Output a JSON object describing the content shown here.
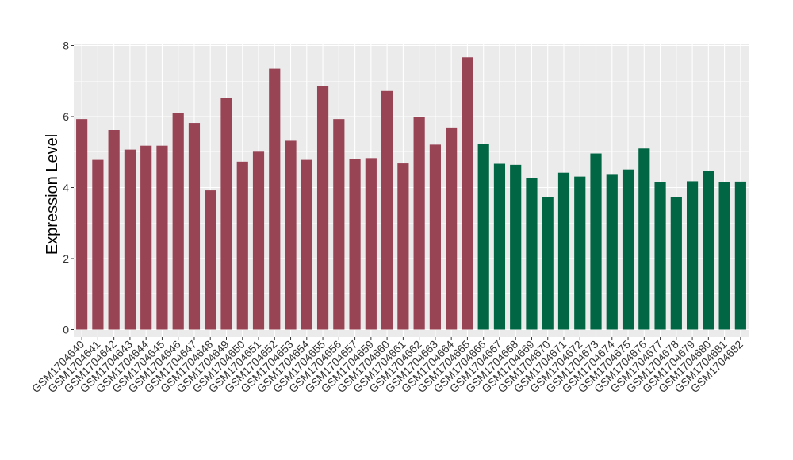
{
  "chart_data": {
    "type": "bar",
    "ylabel": "Expression Level",
    "xlabel": "",
    "title": "",
    "ylim": [
      0,
      8.1
    ],
    "yticks": [
      0,
      2,
      4,
      6,
      8
    ],
    "grid": true,
    "colors": {
      "group1": "#994455",
      "group2": "#006644",
      "panel": "#ebebeb",
      "grid": "#ffffff"
    },
    "categories": [
      "GSM1704640",
      "GSM1704641",
      "GSM1704642",
      "GSM1704643",
      "GSM1704644",
      "GSM1704645",
      "GSM1704646",
      "GSM1704647",
      "GSM1704648",
      "GSM1704649",
      "GSM1704650",
      "GSM1704651",
      "GSM1704652",
      "GSM1704653",
      "GSM1704654",
      "GSM1704655",
      "GSM1704656",
      "GSM1704657",
      "GSM1704659",
      "GSM1704660",
      "GSM1704661",
      "GSM1704662",
      "GSM1704663",
      "GSM1704664",
      "GSM1704665",
      "GSM1704666",
      "GSM1704667",
      "GSM1704668",
      "GSM1704669",
      "GSM1704670",
      "GSM1704671",
      "GSM1704672",
      "GSM1704673",
      "GSM1704674",
      "GSM1704675",
      "GSM1704676",
      "GSM1704677",
      "GSM1704678",
      "GSM1704679",
      "GSM1704680",
      "GSM1704681",
      "GSM1704682"
    ],
    "values": [
      5.93,
      4.78,
      5.62,
      5.07,
      5.18,
      5.18,
      6.11,
      5.82,
      3.92,
      6.52,
      4.73,
      5.01,
      7.35,
      5.32,
      4.78,
      6.85,
      5.93,
      4.81,
      4.83,
      6.72,
      4.68,
      6.0,
      5.21,
      5.69,
      7.67,
      5.23,
      4.67,
      4.64,
      4.27,
      3.74,
      4.42,
      4.31,
      4.96,
      4.36,
      4.51,
      5.1,
      4.16,
      3.74,
      4.18,
      4.47,
      4.16,
      4.17
    ],
    "groups": [
      1,
      1,
      1,
      1,
      1,
      1,
      1,
      1,
      1,
      1,
      1,
      1,
      1,
      1,
      1,
      1,
      1,
      1,
      1,
      1,
      1,
      1,
      1,
      1,
      1,
      2,
      2,
      2,
      2,
      2,
      2,
      2,
      2,
      2,
      2,
      2,
      2,
      2,
      2,
      2,
      2,
      2
    ]
  }
}
